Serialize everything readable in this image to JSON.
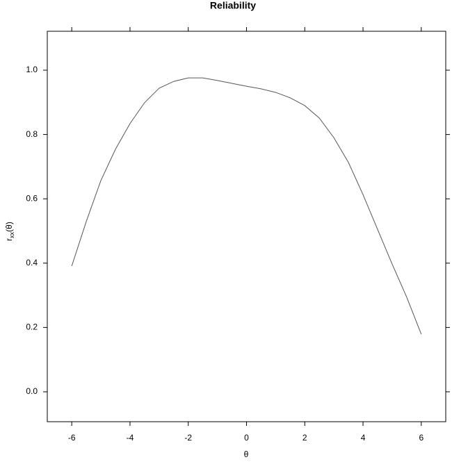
{
  "chart_data": {
    "type": "line",
    "title": "Reliability",
    "xlabel": "θ",
    "ylabel": {
      "base": "r",
      "sub": "xx",
      "rest": "(θ)"
    },
    "x": [
      -6,
      -5.5,
      -5,
      -4.5,
      -4,
      -3.5,
      -3,
      -2.5,
      -2,
      -1.5,
      -1,
      -0.5,
      0,
      0.5,
      1,
      1.5,
      2,
      2.5,
      3,
      3.5,
      4,
      4.5,
      5,
      5.5,
      6
    ],
    "series": [
      {
        "color": "#555555",
        "values": [
          0.391,
          0.53,
          0.657,
          0.754,
          0.834,
          0.899,
          0.944,
          0.965,
          0.976,
          0.976,
          0.968,
          0.959,
          0.95,
          0.942,
          0.931,
          0.914,
          0.89,
          0.851,
          0.79,
          0.713,
          0.613,
          0.505,
          0.397,
          0.294,
          0.179
        ]
      }
    ],
    "xlim": [
      -6.84,
      6.84
    ],
    "ylim": [
      -0.093,
      1.121
    ],
    "xticks": [
      -6,
      -4,
      -2,
      0,
      2,
      4,
      6
    ],
    "yticks": [
      {
        "value": 0,
        "label": "0.0"
      },
      {
        "value": 0.2,
        "label": "0.2"
      },
      {
        "value": 0.4,
        "label": "0.4"
      },
      {
        "value": 0.6,
        "label": "0.6"
      },
      {
        "value": 0.8,
        "label": "0.8"
      },
      {
        "value": 1,
        "label": "1.0"
      }
    ],
    "grid": false
  }
}
